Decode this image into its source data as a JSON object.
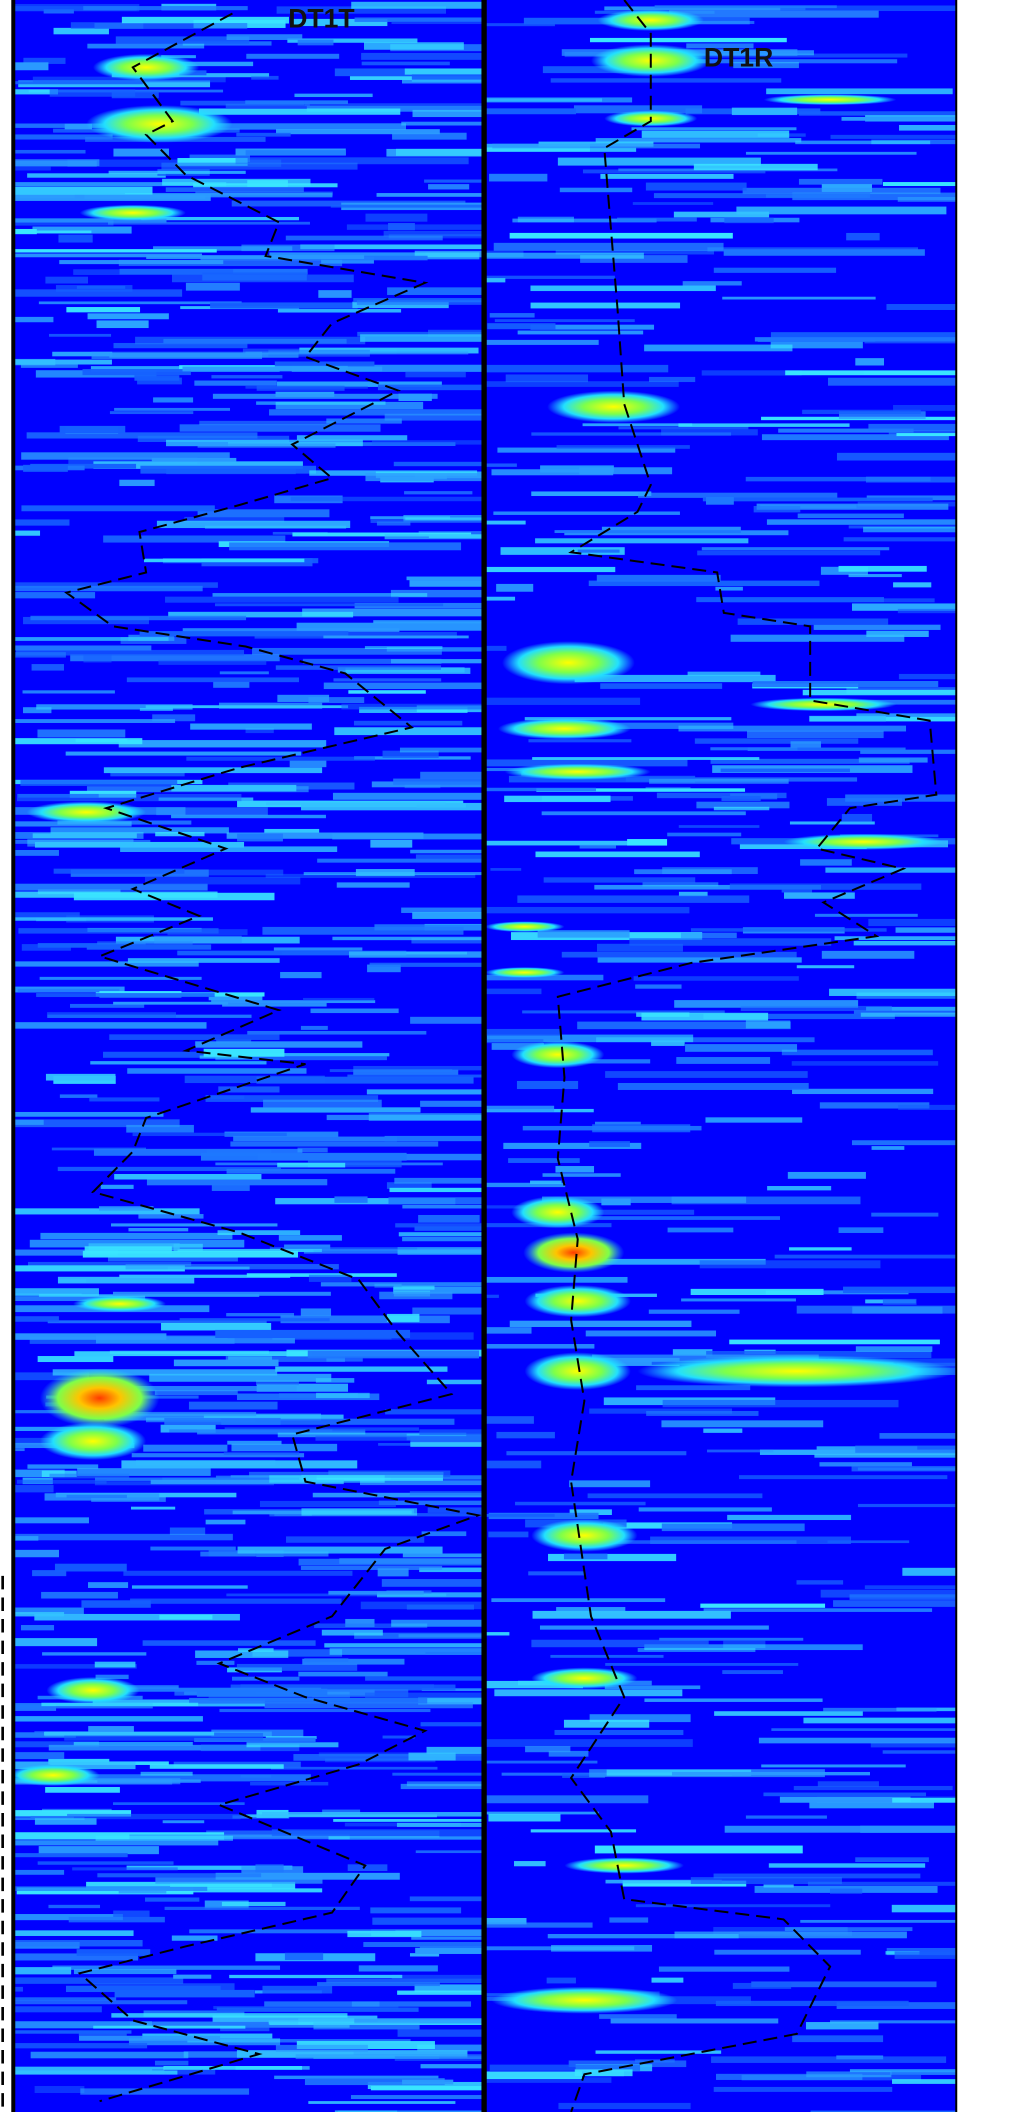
{
  "panels": [
    {
      "label": "DT1T"
    },
    {
      "label": "DT1R"
    }
  ]
}
